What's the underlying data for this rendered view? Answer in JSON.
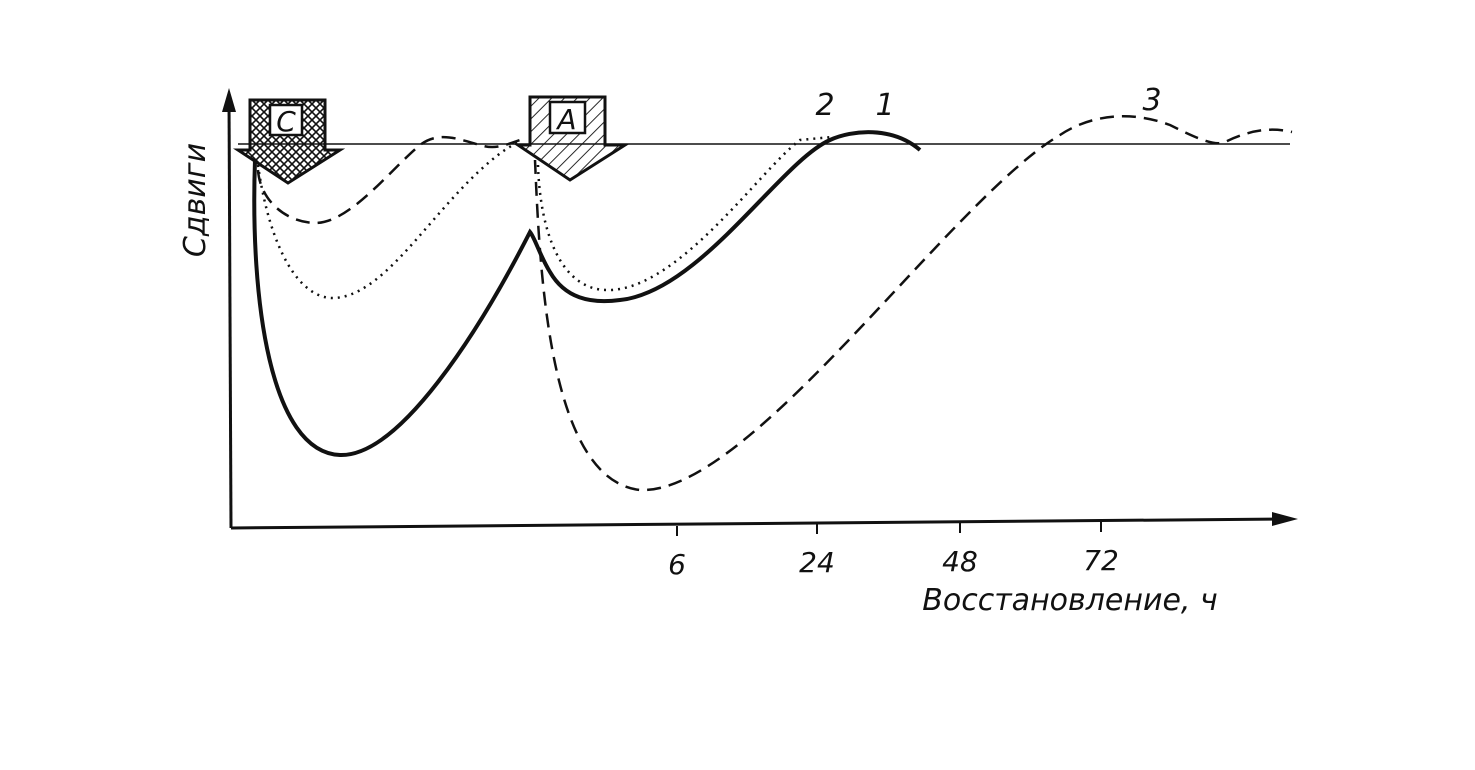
{
  "y_axis_label": "Сдвиги",
  "x_axis_label": "Восстановление, ч",
  "x_ticks": [
    "6",
    "24",
    "48",
    "72"
  ],
  "arrows": [
    "С",
    "А"
  ],
  "curve_labels": [
    "1",
    "2",
    "3"
  ]
}
